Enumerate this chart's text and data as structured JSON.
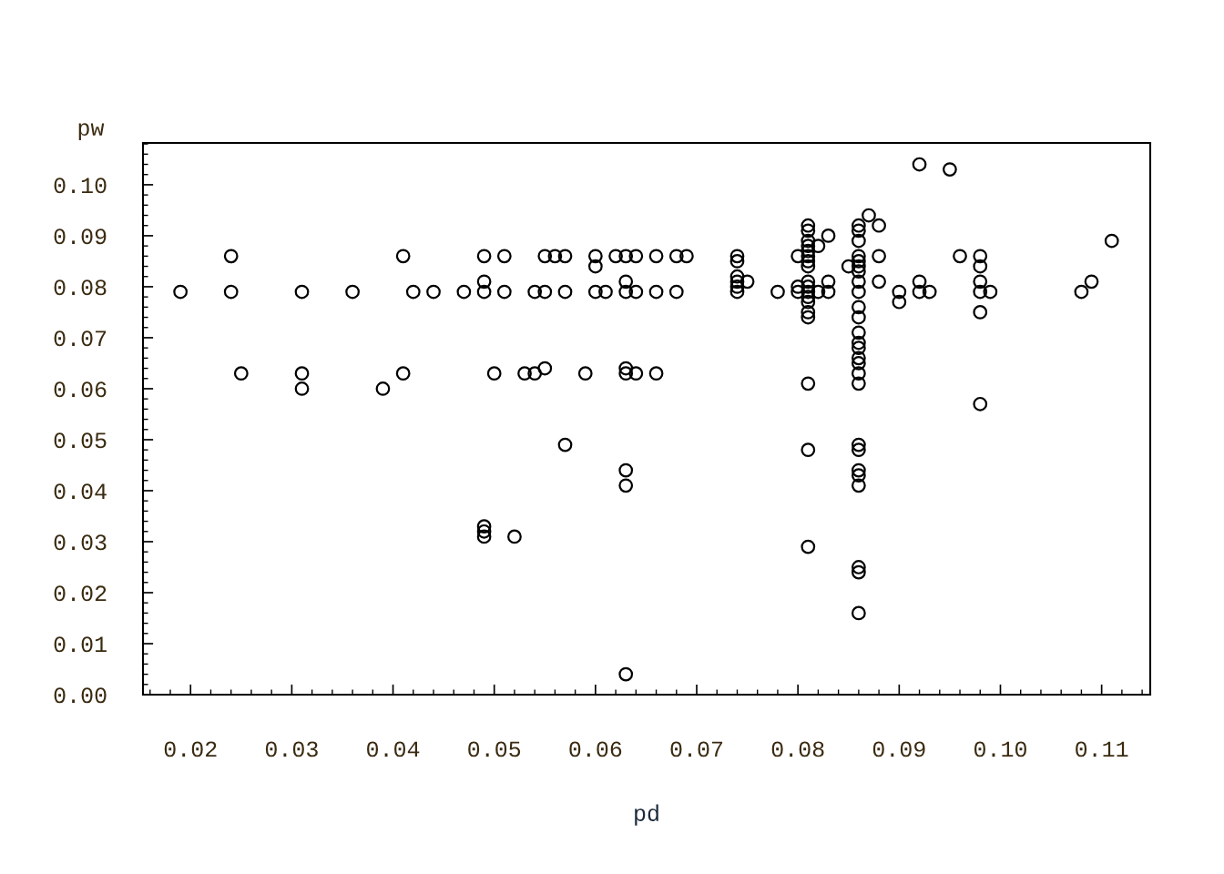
{
  "chart_data": {
    "type": "scatter",
    "xlabel": "pd",
    "ylabel": "pw",
    "xlim": [
      0.0153,
      0.1148
    ],
    "ylim": [
      0.0,
      0.1082
    ],
    "xticks": [
      {
        "value": 0.02,
        "label": "0.02"
      },
      {
        "value": 0.03,
        "label": "0.03"
      },
      {
        "value": 0.04,
        "label": "0.04"
      },
      {
        "value": 0.05,
        "label": "0.05"
      },
      {
        "value": 0.06,
        "label": "0.06"
      },
      {
        "value": 0.07,
        "label": "0.07"
      },
      {
        "value": 0.08,
        "label": "0.08"
      },
      {
        "value": 0.09,
        "label": "0.09"
      },
      {
        "value": 0.1,
        "label": "0.10"
      },
      {
        "value": 0.11,
        "label": "0.11"
      }
    ],
    "yticks": [
      {
        "value": 0.0,
        "label": "0.00"
      },
      {
        "value": 0.01,
        "label": "0.01"
      },
      {
        "value": 0.02,
        "label": "0.02"
      },
      {
        "value": 0.03,
        "label": "0.03"
      },
      {
        "value": 0.04,
        "label": "0.04"
      },
      {
        "value": 0.05,
        "label": "0.05"
      },
      {
        "value": 0.06,
        "label": "0.06"
      },
      {
        "value": 0.07,
        "label": "0.07"
      },
      {
        "value": 0.08,
        "label": "0.08"
      },
      {
        "value": 0.09,
        "label": "0.09"
      },
      {
        "value": 0.1,
        "label": "0.10"
      }
    ],
    "grid": false,
    "marker": "circle",
    "series": [
      {
        "color": "#000000",
        "x": [
          0.019,
          0.024,
          0.024,
          0.025,
          0.031,
          0.031,
          0.031,
          0.036,
          0.039,
          0.041,
          0.041,
          0.042,
          0.044,
          0.047,
          0.049,
          0.049,
          0.049,
          0.049,
          0.049,
          0.049,
          0.05,
          0.051,
          0.051,
          0.052,
          0.053,
          0.054,
          0.054,
          0.055,
          0.055,
          0.055,
          0.056,
          0.057,
          0.057,
          0.057,
          0.059,
          0.06,
          0.06,
          0.06,
          0.061,
          0.062,
          0.063,
          0.063,
          0.063,
          0.063,
          0.063,
          0.063,
          0.063,
          0.063,
          0.064,
          0.064,
          0.064,
          0.066,
          0.066,
          0.066,
          0.068,
          0.068,
          0.069,
          0.074,
          0.074,
          0.074,
          0.074,
          0.074,
          0.074,
          0.075,
          0.078,
          0.08,
          0.08,
          0.08,
          0.081,
          0.081,
          0.081,
          0.081,
          0.081,
          0.081,
          0.081,
          0.081,
          0.081,
          0.081,
          0.081,
          0.081,
          0.081,
          0.081,
          0.081,
          0.081,
          0.081,
          0.081,
          0.082,
          0.082,
          0.083,
          0.083,
          0.083,
          0.085,
          0.086,
          0.086,
          0.086,
          0.086,
          0.086,
          0.086,
          0.086,
          0.086,
          0.086,
          0.086,
          0.086,
          0.086,
          0.086,
          0.086,
          0.086,
          0.086,
          0.086,
          0.086,
          0.086,
          0.086,
          0.086,
          0.086,
          0.086,
          0.086,
          0.086,
          0.086,
          0.087,
          0.088,
          0.088,
          0.088,
          0.09,
          0.09,
          0.092,
          0.092,
          0.092,
          0.093,
          0.095,
          0.096,
          0.098,
          0.098,
          0.098,
          0.098,
          0.098,
          0.098,
          0.099,
          0.108,
          0.109,
          0.111
        ],
        "values": [
          0.079,
          0.086,
          0.079,
          0.063,
          0.079,
          0.063,
          0.06,
          0.079,
          0.06,
          0.086,
          0.063,
          0.079,
          0.079,
          0.079,
          0.086,
          0.081,
          0.079,
          0.033,
          0.032,
          0.031,
          0.063,
          0.086,
          0.079,
          0.031,
          0.063,
          0.079,
          0.063,
          0.086,
          0.079,
          0.064,
          0.086,
          0.086,
          0.079,
          0.049,
          0.063,
          0.086,
          0.084,
          0.079,
          0.079,
          0.086,
          0.086,
          0.081,
          0.079,
          0.064,
          0.063,
          0.044,
          0.041,
          0.004,
          0.086,
          0.079,
          0.063,
          0.086,
          0.079,
          0.063,
          0.086,
          0.079,
          0.086,
          0.086,
          0.085,
          0.082,
          0.081,
          0.08,
          0.079,
          0.081,
          0.079,
          0.086,
          0.08,
          0.079,
          0.092,
          0.091,
          0.089,
          0.088,
          0.087,
          0.086,
          0.085,
          0.084,
          0.081,
          0.08,
          0.079,
          0.078,
          0.077,
          0.075,
          0.074,
          0.061,
          0.048,
          0.029,
          0.088,
          0.079,
          0.09,
          0.081,
          0.079,
          0.084,
          0.092,
          0.091,
          0.089,
          0.086,
          0.085,
          0.084,
          0.083,
          0.081,
          0.079,
          0.076,
          0.074,
          0.071,
          0.069,
          0.068,
          0.066,
          0.065,
          0.063,
          0.061,
          0.049,
          0.048,
          0.044,
          0.043,
          0.041,
          0.025,
          0.024,
          0.016,
          0.094,
          0.092,
          0.086,
          0.081,
          0.079,
          0.077,
          0.104,
          0.081,
          0.079,
          0.079,
          0.103,
          0.086,
          0.086,
          0.084,
          0.081,
          0.079,
          0.075,
          0.057,
          0.079,
          0.079,
          0.081,
          0.089
        ]
      }
    ]
  }
}
